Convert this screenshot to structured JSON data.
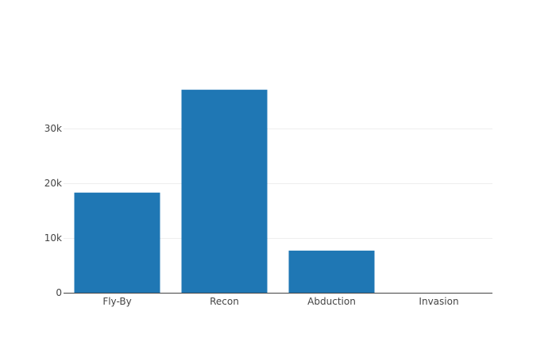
{
  "chart_data": {
    "type": "bar",
    "categories": [
      "Fly-By",
      "Recon",
      "Abduction",
      "Invasion"
    ],
    "values": [
      18300,
      37100,
      7700,
      0
    ],
    "ylim": [
      0,
      39000
    ],
    "yticks": [
      0,
      10000,
      20000,
      30000
    ],
    "ytick_labels": [
      "0",
      "10k",
      "20k",
      "30k"
    ],
    "grid": true,
    "bar_color": "#1f77b4",
    "title": "",
    "xlabel": "",
    "ylabel": ""
  }
}
